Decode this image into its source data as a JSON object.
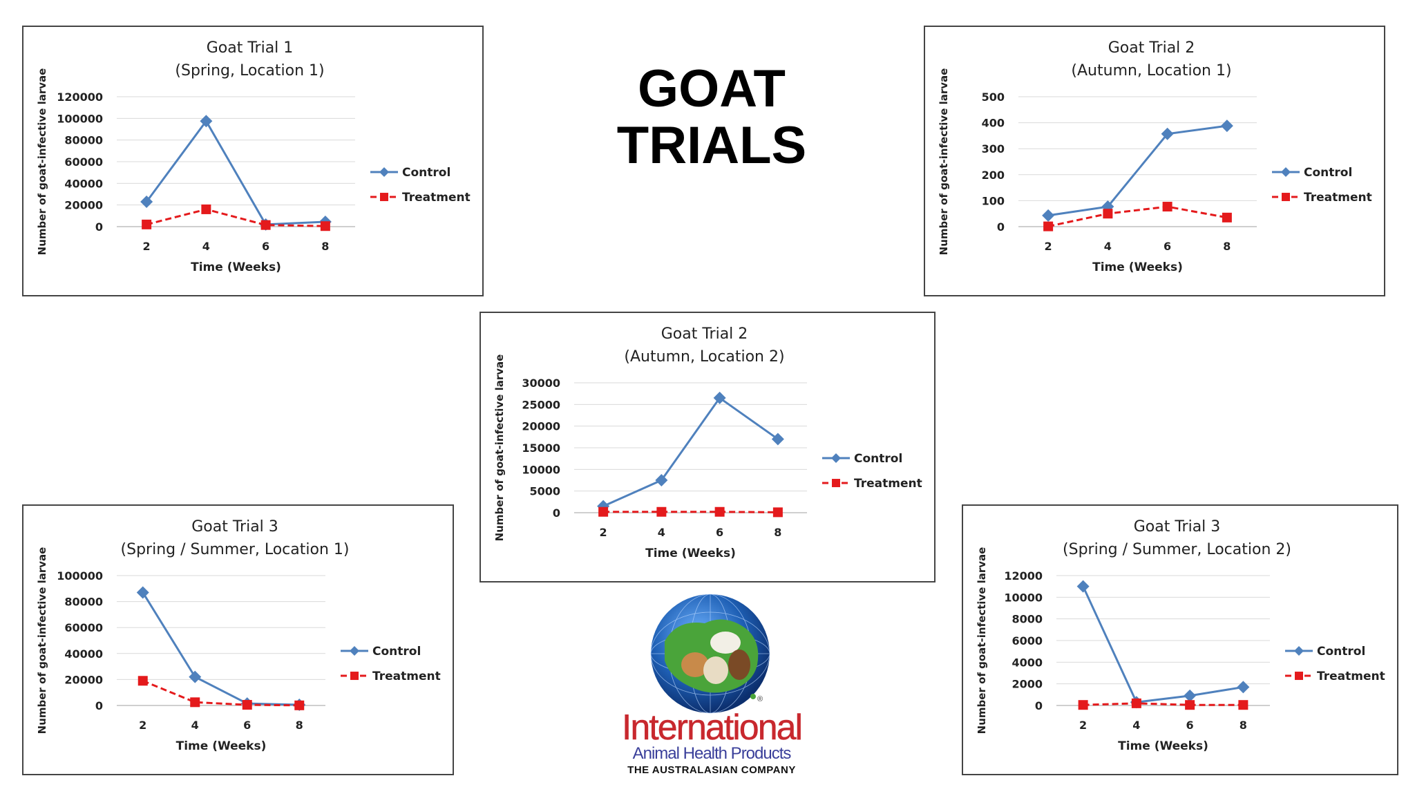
{
  "page": {
    "title_line1": "GOAT",
    "title_line2": "TRIALS"
  },
  "logo": {
    "name": "International",
    "subtitle": "Animal Health Products",
    "tagline": "THE AUSTRALASIAN COMPANY",
    "mark": "®",
    "colors": {
      "red": "#c8282e",
      "blue": "#3a3f9a",
      "globe": "#1e5fb4",
      "land": "#4aa43a"
    }
  },
  "colors": {
    "control": "#4f81bd",
    "treatment": "#e41a1c",
    "grid": "#d9d9d9",
    "axis": "#bfbfbf"
  },
  "chart_data": [
    {
      "type": "line",
      "title_line1": "Goat Trial 1",
      "title_line2": "(Spring, Location 1)",
      "xlabel": "Time (Weeks)",
      "ylabel": "Number of goat-infective larvae",
      "x": [
        2,
        4,
        6,
        8
      ],
      "ylim": [
        0,
        120000
      ],
      "yticks": [
        0,
        20000,
        40000,
        60000,
        80000,
        100000,
        120000
      ],
      "legend_position": "right",
      "grid": true,
      "series": [
        {
          "name": "Control",
          "values": [
            23000,
            97500,
            2000,
            4500
          ]
        },
        {
          "name": "Treatment",
          "values": [
            2000,
            16000,
            1500,
            500
          ]
        }
      ]
    },
    {
      "type": "line",
      "title_line1": "Goat Trial 2",
      "title_line2": "(Autumn, Location 1)",
      "xlabel": "Time (Weeks)",
      "ylabel": "Number of goat-infective larvae",
      "x": [
        2,
        4,
        6,
        8
      ],
      "ylim": [
        0,
        500
      ],
      "yticks": [
        0,
        100,
        200,
        300,
        400,
        500
      ],
      "legend_position": "right",
      "grid": true,
      "series": [
        {
          "name": "Control",
          "values": [
            43,
            77,
            357,
            388
          ]
        },
        {
          "name": "Treatment",
          "values": [
            1,
            50,
            77,
            35
          ]
        }
      ]
    },
    {
      "type": "line",
      "title_line1": "Goat Trial  2",
      "title_line2": "(Autumn, Location 2)",
      "xlabel": "Time (Weeks)",
      "ylabel": "Number of goat-infective larvae",
      "x": [
        2,
        4,
        6,
        8
      ],
      "ylim": [
        0,
        30000
      ],
      "yticks": [
        0,
        5000,
        10000,
        15000,
        20000,
        25000,
        30000
      ],
      "legend_position": "right",
      "grid": true,
      "series": [
        {
          "name": "Control",
          "values": [
            1500,
            7500,
            26500,
            17000
          ]
        },
        {
          "name": "Treatment",
          "values": [
            200,
            200,
            200,
            100
          ]
        }
      ]
    },
    {
      "type": "line",
      "title_line1": "Goat Trial 3",
      "title_line2": "(Spring / Summer, Location 1)",
      "xlabel": "Time (Weeks)",
      "ylabel": "Number of goat-infective larvae",
      "x": [
        2,
        4,
        6,
        8
      ],
      "ylim": [
        0,
        100000
      ],
      "yticks": [
        0,
        20000,
        40000,
        60000,
        80000,
        100000
      ],
      "legend_position": "right",
      "grid": true,
      "series": [
        {
          "name": "Control",
          "values": [
            87000,
            22000,
            1500,
            500
          ]
        },
        {
          "name": "Treatment",
          "values": [
            19000,
            2500,
            500,
            100
          ]
        }
      ]
    },
    {
      "type": "line",
      "title_line1": "Goat Trial 3",
      "title_line2": "(Spring / Summer, Location 2)",
      "xlabel": "Time (Weeks)",
      "ylabel": "Number of goat-infective larvae",
      "x": [
        2,
        4,
        6,
        8
      ],
      "ylim": [
        0,
        12000
      ],
      "yticks": [
        0,
        2000,
        4000,
        6000,
        8000,
        10000,
        12000
      ],
      "legend_position": "right",
      "grid": true,
      "series": [
        {
          "name": "Control",
          "values": [
            11000,
            300,
            900,
            1700
          ]
        },
        {
          "name": "Treatment",
          "values": [
            50,
            200,
            50,
            50
          ]
        }
      ]
    }
  ]
}
